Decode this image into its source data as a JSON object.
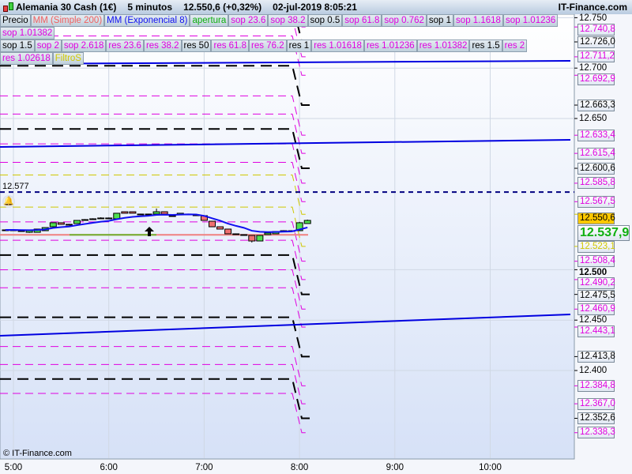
{
  "header": {
    "title": "Alemania 30 Cash (1€)",
    "timeframe": "5 minutos",
    "price": "12.550,6 (+0,32%)",
    "datetime": "02-jul-2019 8:05:21",
    "brand": "IT-Finance.com"
  },
  "legend": {
    "row1": [
      {
        "label": "Precio",
        "color": "#000000"
      },
      {
        "label": "MM (Simple 200)",
        "color": "#f06060"
      },
      {
        "label": "MM (Exponencial 8)",
        "color": "#1010f0"
      },
      {
        "label": "apertura",
        "color": "#10b010"
      },
      {
        "label": "sop 23.6",
        "color": "#e000e0"
      },
      {
        "label": "sop 38.2",
        "color": "#e000e0"
      },
      {
        "label": "sop 0.5",
        "color": "#000000"
      },
      {
        "label": "sop 61.8",
        "color": "#e000e0"
      },
      {
        "label": "sop 0.762",
        "color": "#e000e0"
      },
      {
        "label": "sop 1",
        "color": "#000000"
      },
      {
        "label": "sop 1.1618",
        "color": "#e000e0"
      },
      {
        "label": "sop 1.01236",
        "color": "#e000e0"
      },
      {
        "label": "sop 1.01382",
        "color": "#e000e0"
      }
    ],
    "row2": [
      {
        "label": "sop 1.5",
        "color": "#000000"
      },
      {
        "label": "sop 2",
        "color": "#e000e0"
      },
      {
        "label": "sop 2.618",
        "color": "#e000e0"
      },
      {
        "label": "res 23.6",
        "color": "#e000e0"
      },
      {
        "label": "res 38.2",
        "color": "#e000e0"
      },
      {
        "label": "res 50",
        "color": "#000000"
      },
      {
        "label": "res 61.8",
        "color": "#e000e0"
      },
      {
        "label": "res 76.2",
        "color": "#e000e0"
      },
      {
        "label": "res 1",
        "color": "#000000"
      },
      {
        "label": "res 1.01618",
        "color": "#e000e0"
      },
      {
        "label": "res 1.01236",
        "color": "#e000e0"
      },
      {
        "label": "res 1.01382",
        "color": "#e000e0"
      },
      {
        "label": "res 1.5",
        "color": "#000000"
      },
      {
        "label": "res 2",
        "color": "#e000e0"
      },
      {
        "label": "res 1.02618",
        "color": "#e000e0"
      },
      {
        "label": "FiltroS",
        "color": "#d0c800"
      }
    ]
  },
  "axis": {
    "ticks": [
      {
        "label": "12.750",
        "value": 12750
      },
      {
        "label": "12.700",
        "value": 12700
      },
      {
        "label": "12.650",
        "value": 12650
      },
      {
        "label": "12.500",
        "value": 12500,
        "bold": true
      },
      {
        "label": "12.450",
        "value": 12450
      },
      {
        "label": "12.400",
        "value": 12400
      }
    ],
    "levels": [
      {
        "label": "12.740,8",
        "value": 12740.8,
        "color": "#e000e0"
      },
      {
        "label": "12.726,0",
        "value": 12726.0,
        "color": "#000000"
      },
      {
        "label": "12.711,2",
        "value": 12711.2,
        "color": "#e000e0"
      },
      {
        "label": "12.692,9",
        "value": 12692.9,
        "color": "#e000e0"
      },
      {
        "label": "12.663,3",
        "value": 12663.3,
        "color": "#000000"
      },
      {
        "label": "12.633,4",
        "value": 12633.4,
        "color": "#e000e0"
      },
      {
        "label": "12.615,4",
        "value": 12615.4,
        "color": "#e000e0"
      },
      {
        "label": "12.600,6",
        "value": 12600.6,
        "color": "#000000"
      },
      {
        "label": "12.585,8",
        "value": 12585.8,
        "color": "#e000e0"
      },
      {
        "label": "12.567,5",
        "value": 12567.5,
        "color": "#e000e0"
      },
      {
        "label": "12.523,1",
        "value": 12523.1,
        "color": "#d0c800"
      },
      {
        "label": "12.508,4",
        "value": 12508.4,
        "color": "#e000e0"
      },
      {
        "label": "12.490,2",
        "value": 12490.2,
        "color": "#e000e0"
      },
      {
        "label": "12.475,5",
        "value": 12475.5,
        "color": "#000000"
      },
      {
        "label": "12.460,9",
        "value": 12460.9,
        "color": "#e000e0"
      },
      {
        "label": "12.443,1",
        "value": 12443.1,
        "color": "#e000e0"
      },
      {
        "label": "12.413,8",
        "value": 12413.8,
        "color": "#000000"
      },
      {
        "label": "12.384,8",
        "value": 12384.8,
        "color": "#e000e0"
      },
      {
        "label": "12.367,0",
        "value": 12367.0,
        "color": "#e000e0"
      },
      {
        "label": "12.352,6",
        "value": 12352.6,
        "color": "#000000"
      },
      {
        "label": "12.338,3",
        "value": 12338.3,
        "color": "#e000e0"
      }
    ],
    "last_price": {
      "label": "12.550,6",
      "value": 12550.6,
      "bg": "#ffc800"
    },
    "bid": {
      "label": "12.537,9",
      "value": 12537.9,
      "color": "#10b010"
    }
  },
  "xaxis": {
    "labels": [
      {
        "label": "5:00",
        "time": "5:00"
      },
      {
        "label": "6:00",
        "time": "6:00"
      },
      {
        "label": "7:00",
        "time": "7:00"
      },
      {
        "label": "8:00",
        "time": "8:00"
      },
      {
        "label": "9:00",
        "time": "9:00"
      },
      {
        "label": "10:00",
        "time": "10:00"
      }
    ]
  },
  "alert_level": {
    "label": "12.577",
    "value": 12577,
    "color": "#000080"
  },
  "chart_data": {
    "type": "candlestick",
    "timeframe": "5 minutos",
    "first_time": "4:55",
    "candles": [
      [
        12539.5,
        12540,
        12539,
        12539.5
      ],
      [
        12539.5,
        12540,
        12539,
        12539.5
      ],
      [
        12538.7,
        12539,
        12538,
        12538.7
      ],
      [
        12537.1,
        12539,
        12536.5,
        12538.7
      ],
      [
        12537.1,
        12540.5,
        12537,
        12540.3
      ],
      [
        12538.7,
        12541.8,
        12538.5,
        12541.8
      ],
      [
        12542.6,
        12546.6,
        12542.5,
        12546.6
      ],
      [
        12546.6,
        12546.6,
        12545,
        12545.0
      ],
      [
        12545,
        12545.5,
        12544.5,
        12545.0
      ],
      [
        12545.8,
        12548.9,
        12545.5,
        12548.9
      ],
      [
        12549.7,
        12550.2,
        12549.2,
        12549.7
      ],
      [
        12550.5,
        12551,
        12550,
        12550.5
      ],
      [
        12551.3,
        12552,
        12550.8,
        12551.3
      ],
      [
        12551.3,
        12551.8,
        12550.8,
        12551.3
      ],
      [
        12550.5,
        12556,
        12550.5,
        12556.0
      ],
      [
        12557.5,
        12557.5,
        12556,
        12556.0
      ],
      [
        12557.5,
        12557.5,
        12556,
        12556.0
      ],
      [
        12555.2,
        12555.6,
        12554.8,
        12555.2
      ],
      [
        12555.2,
        12555.6,
        12554.8,
        12555.2
      ],
      [
        12555.2,
        12560.7,
        12555,
        12557.5
      ],
      [
        12557.5,
        12557.5,
        12555.2,
        12555.2
      ],
      [
        12553.6,
        12554,
        12553.2,
        12553.6
      ],
      [
        12554.4,
        12556,
        12554.4,
        12556.0
      ],
      [
        12555.2,
        12555.6,
        12554.8,
        12555.2
      ],
      [
        12554.4,
        12554.8,
        12554,
        12554.4
      ],
      [
        12553.6,
        12553.6,
        12548.9,
        12548.9
      ],
      [
        12548.1,
        12548.1,
        12542.6,
        12542.6
      ],
      [
        12542.6,
        12542.6,
        12540.3,
        12540.3
      ],
      [
        12540.3,
        12540.3,
        12535.6,
        12535.6
      ],
      [
        12535.6,
        12536,
        12535.2,
        12535.6
      ],
      [
        12534.8,
        12535.2,
        12534.4,
        12534.8
      ],
      [
        12534,
        12534,
        12527,
        12528.5
      ],
      [
        12528.5,
        12534,
        12528.5,
        12534.0
      ],
      [
        12534.8,
        12536.4,
        12534.8,
        12536.4
      ],
      [
        12535.6,
        12537.9,
        12535.6,
        12537.9
      ],
      [
        12538.7,
        12539.2,
        12538.2,
        12538.7
      ],
      [
        12538.7,
        12539.2,
        12538.2,
        12538.7
      ],
      [
        12538.7,
        12547.5,
        12538.5,
        12546.6
      ],
      [
        12545.8,
        12549.7,
        12545.8,
        12548.9
      ]
    ],
    "sma200": 12534.6,
    "trendlines": [
      {
        "start": 12704.1,
        "end": 12707.2,
        "color": "#0000e0"
      },
      {
        "start": 12621.8,
        "end": 12628.8,
        "color": "#0000e0"
      },
      {
        "start": 12434.5,
        "end": 12455.6,
        "color": "#0000e0"
      }
    ],
    "extra_levels": [
      {
        "value": 12555,
        "color": "#d0c800"
      }
    ]
  },
  "footer": {
    "copyright": "© IT-Finance.com"
  },
  "icons": {
    "bell": "bell-icon",
    "arrow": "arrow-up-icon",
    "logo": "candlestick-logo-icon"
  }
}
